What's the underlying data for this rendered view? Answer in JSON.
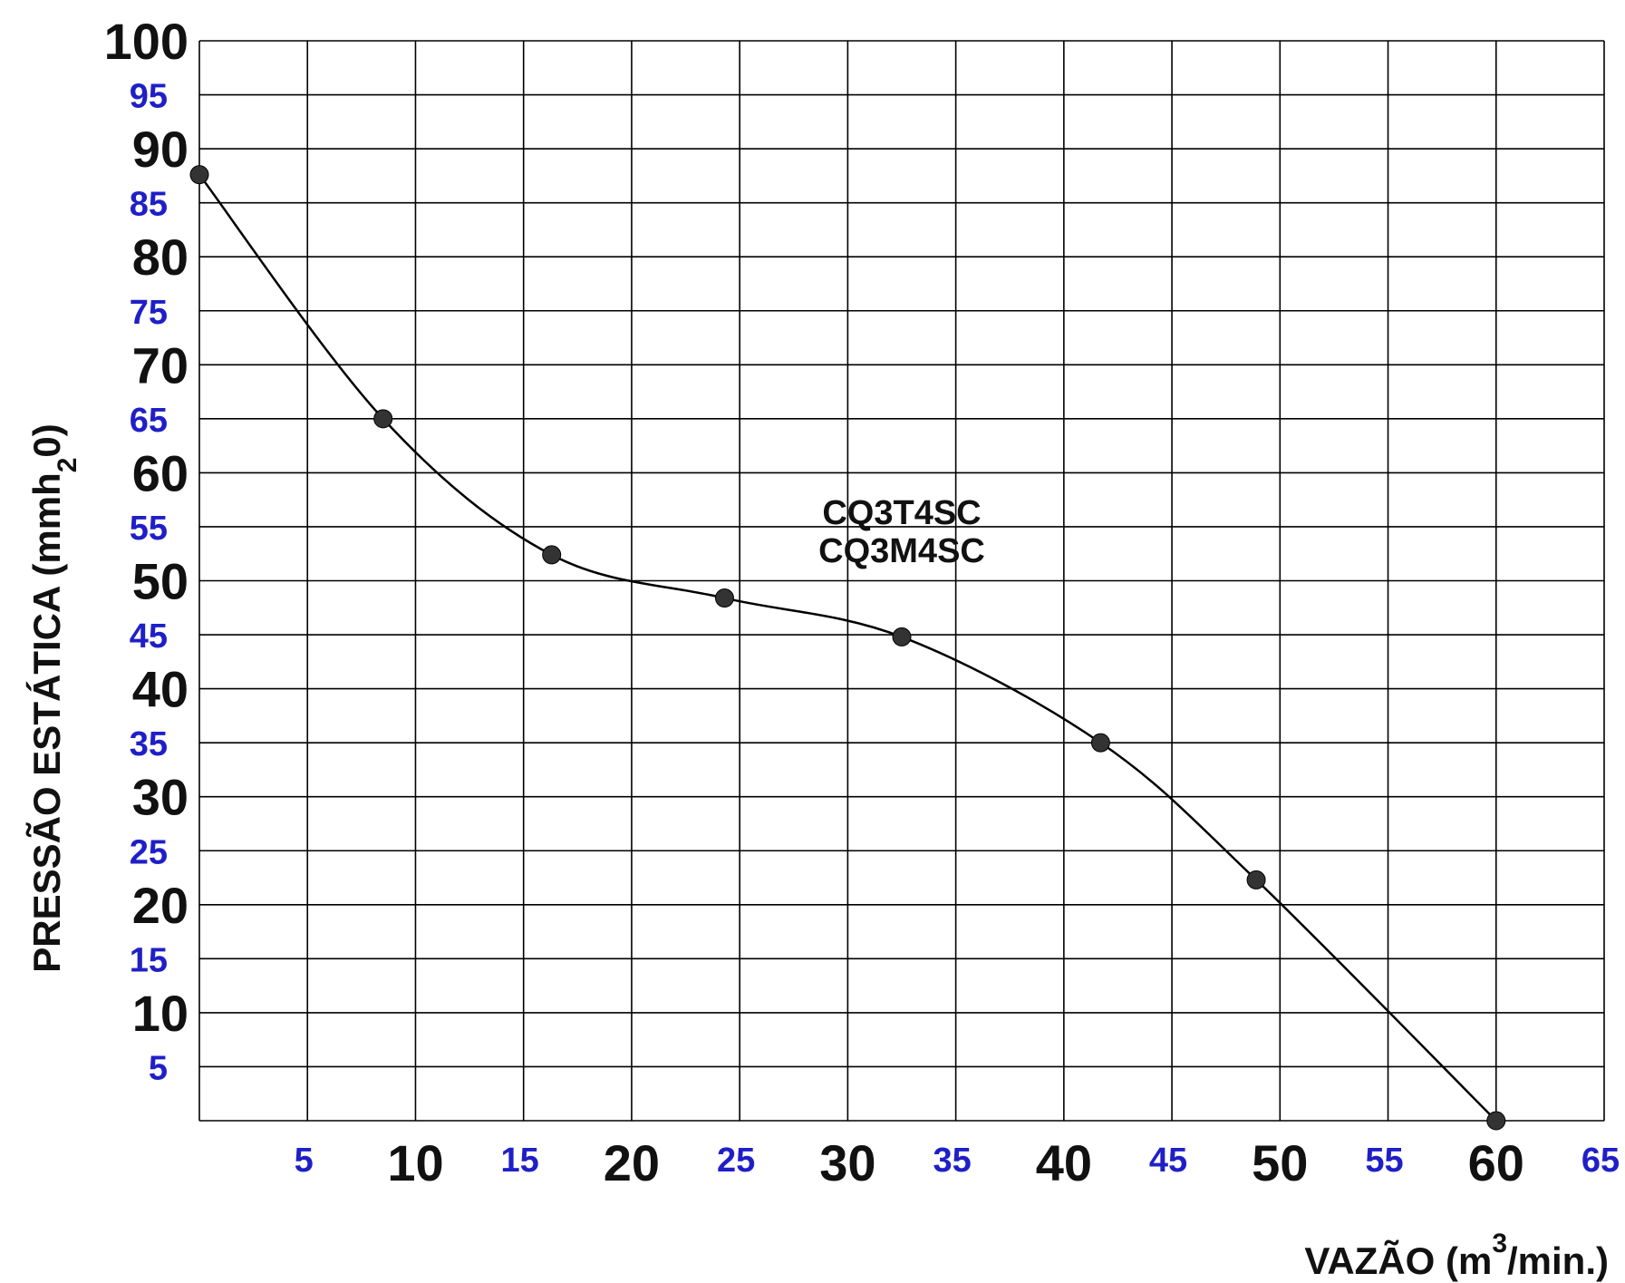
{
  "chart_data": {
    "type": "line",
    "xlabel": {
      "prefix": "VAZÃO (m",
      "sup": "3",
      "suffix": "/min.)"
    },
    "ylabel": {
      "prefix": "PRESSÃO ESTÁTICA (mmh",
      "sub": "2",
      "suffix": "0)"
    },
    "xlim": [
      0,
      65
    ],
    "ylim": [
      0,
      100
    ],
    "x_major_ticks": [
      10,
      20,
      30,
      40,
      50,
      60
    ],
    "x_minor_ticks": [
      5,
      15,
      25,
      35,
      45,
      55,
      65
    ],
    "y_major_ticks": [
      10,
      20,
      30,
      40,
      50,
      60,
      70,
      80,
      90,
      100
    ],
    "y_minor_ticks": [
      5,
      15,
      25,
      35,
      45,
      55,
      65,
      75,
      85,
      95
    ],
    "grid": true,
    "annotations": [
      "CQ3T4SC",
      "CQ3M4SC"
    ],
    "series": [
      {
        "x": [
          0,
          8.5,
          16.3,
          24.3,
          32.5,
          41.7,
          48.9,
          60
        ],
        "y": [
          87.6,
          65,
          52.4,
          48.4,
          44.8,
          35,
          22.3,
          0
        ]
      }
    ],
    "colors": {
      "major_tick": "#111111",
      "minor_tick": "#1f1fc8",
      "line": "#000000",
      "marker": "#333333",
      "grid": "#000000"
    }
  }
}
